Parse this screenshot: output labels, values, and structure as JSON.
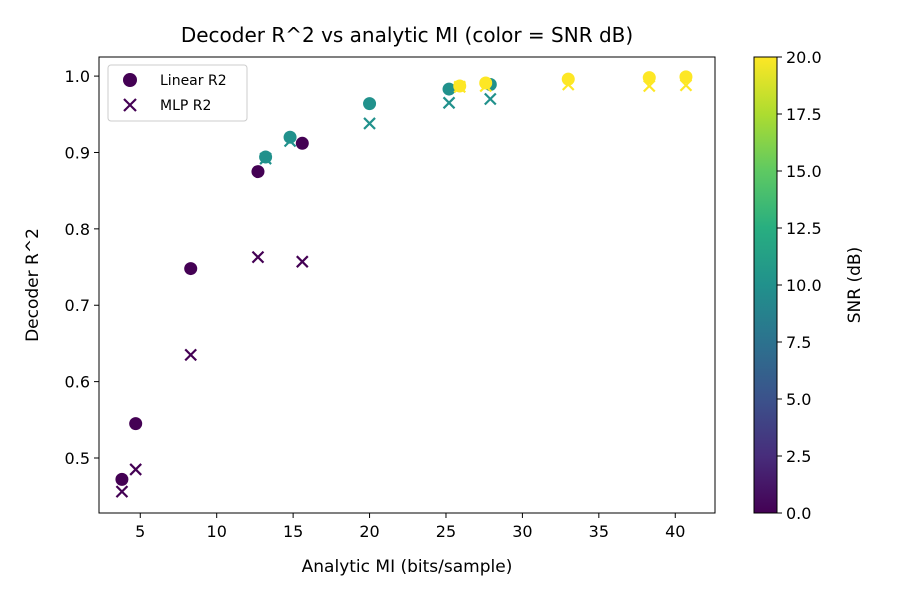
{
  "chart_data": {
    "type": "scatter",
    "title": "Decoder R^2 vs analytic MI (color = SNR dB)",
    "xlabel": "Analytic MI (bits/sample)",
    "ylabel": "Decoder R^2",
    "xlim": [
      2.3,
      42.6
    ],
    "ylim": [
      0.428,
      1.025
    ],
    "xticks": [
      5,
      10,
      15,
      20,
      25,
      30,
      35,
      40
    ],
    "yticks": [
      0.5,
      0.6,
      0.7,
      0.8,
      0.9,
      1.0
    ],
    "x_tick_labels": [
      "5",
      "10",
      "15",
      "20",
      "25",
      "30",
      "35",
      "40"
    ],
    "y_tick_labels": [
      "0.5",
      "0.6",
      "0.7",
      "0.8",
      "0.9",
      "1.0"
    ],
    "legend": {
      "position": "top-left",
      "entries": [
        "Linear R2",
        "MLP R2"
      ]
    },
    "colorbar": {
      "label": "SNR (dB)",
      "range": [
        0,
        20
      ],
      "ticks": [
        0,
        2.5,
        5,
        7.5,
        10,
        12.5,
        15,
        17.5,
        20
      ],
      "tick_labels": [
        "0.0",
        "2.5",
        "5.0",
        "7.5",
        "10.0",
        "12.5",
        "15.0",
        "17.5",
        "20.0"
      ],
      "colormap": "viridis"
    },
    "series": [
      {
        "name": "Linear R2",
        "marker": "circle",
        "points": [
          {
            "x": 3.8,
            "y": 0.472,
            "snr": 0
          },
          {
            "x": 4.7,
            "y": 0.545,
            "snr": 0
          },
          {
            "x": 8.3,
            "y": 0.748,
            "snr": 0
          },
          {
            "x": 12.7,
            "y": 0.875,
            "snr": 0
          },
          {
            "x": 15.6,
            "y": 0.912,
            "snr": 0
          },
          {
            "x": 13.2,
            "y": 0.894,
            "snr": 10
          },
          {
            "x": 14.8,
            "y": 0.92,
            "snr": 10
          },
          {
            "x": 20.0,
            "y": 0.964,
            "snr": 10
          },
          {
            "x": 25.2,
            "y": 0.983,
            "snr": 10
          },
          {
            "x": 27.9,
            "y": 0.989,
            "snr": 10
          },
          {
            "x": 25.9,
            "y": 0.987,
            "snr": 20
          },
          {
            "x": 27.6,
            "y": 0.991,
            "snr": 20
          },
          {
            "x": 33.0,
            "y": 0.996,
            "snr": 20
          },
          {
            "x": 38.3,
            "y": 0.998,
            "snr": 20
          },
          {
            "x": 40.7,
            "y": 0.999,
            "snr": 20
          }
        ]
      },
      {
        "name": "MLP R2",
        "marker": "x",
        "points": [
          {
            "x": 3.8,
            "y": 0.456,
            "snr": 0
          },
          {
            "x": 4.7,
            "y": 0.485,
            "snr": 0
          },
          {
            "x": 8.3,
            "y": 0.635,
            "snr": 0
          },
          {
            "x": 12.7,
            "y": 0.763,
            "snr": 0
          },
          {
            "x": 15.6,
            "y": 0.757,
            "snr": 0
          },
          {
            "x": 13.2,
            "y": 0.892,
            "snr": 10
          },
          {
            "x": 14.8,
            "y": 0.915,
            "snr": 10
          },
          {
            "x": 20.0,
            "y": 0.938,
            "snr": 10
          },
          {
            "x": 25.2,
            "y": 0.965,
            "snr": 10
          },
          {
            "x": 27.9,
            "y": 0.97,
            "snr": 10
          },
          {
            "x": 25.9,
            "y": 0.986,
            "snr": 20
          },
          {
            "x": 27.6,
            "y": 0.987,
            "snr": 20
          },
          {
            "x": 33.0,
            "y": 0.989,
            "snr": 20
          },
          {
            "x": 38.3,
            "y": 0.987,
            "snr": 20
          },
          {
            "x": 40.7,
            "y": 0.988,
            "snr": 20
          }
        ]
      }
    ]
  },
  "colors": {
    "low": "#440154",
    "mid": "#21918c",
    "high": "#fde725",
    "axis": "#000000"
  }
}
